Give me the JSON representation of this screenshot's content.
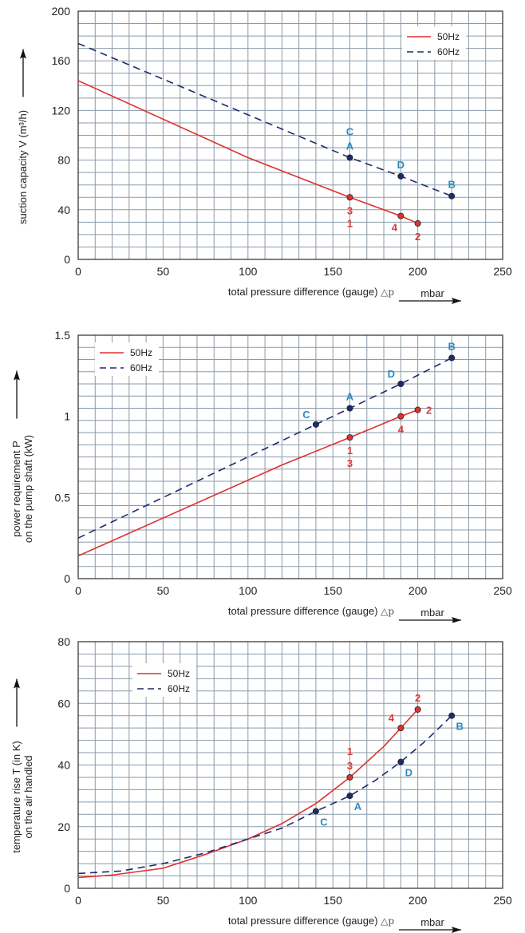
{
  "colors": {
    "series_50": "#e03030",
    "series_60": "#1e2a6e",
    "label_50": "#d83a3a",
    "label_60": "#2a8bc4",
    "grid": "#8a9aa8",
    "background": "#ffffff"
  },
  "unit_label": "mbar",
  "chart_data": [
    {
      "type": "line",
      "xlabel": "total pressure difference (gauge)",
      "xlabel_symbol": "△p",
      "ylabel": "suction capacity V (m³/h)",
      "ylabel_2": "",
      "xlim": [
        0,
        250
      ],
      "ylim": [
        0,
        200
      ],
      "x_ticks": [
        "0",
        "50",
        "100",
        "150",
        "200",
        "250"
      ],
      "y_ticks": [
        "0",
        "40",
        "80",
        "120",
        "160",
        "200"
      ],
      "grid": true,
      "legend_position": "top-right",
      "series": [
        {
          "name": "50Hz",
          "style": "solid",
          "points": [
            [
              0,
              144
            ],
            [
              100,
              82
            ],
            [
              160,
              50
            ],
            [
              190,
              35
            ],
            [
              200,
              29
            ]
          ],
          "markers": [
            [
              160,
              50
            ],
            [
              190,
              35
            ],
            [
              200,
              29
            ]
          ]
        },
        {
          "name": "60Hz",
          "style": "dashed",
          "points": [
            [
              0,
              174
            ],
            [
              160,
              82
            ],
            [
              190,
              67
            ],
            [
              220,
              51
            ]
          ],
          "markers": [
            [
              160,
              82
            ],
            [
              190,
              67
            ],
            [
              220,
              51
            ]
          ]
        }
      ],
      "annotations": [
        {
          "text": "C",
          "x": 160,
          "y": 82,
          "series": "60Hz",
          "pos": "above-far"
        },
        {
          "text": "A",
          "x": 160,
          "y": 82,
          "series": "60Hz",
          "pos": "above"
        },
        {
          "text": "D",
          "x": 190,
          "y": 67,
          "series": "60Hz",
          "pos": "above"
        },
        {
          "text": "B",
          "x": 220,
          "y": 51,
          "series": "60Hz",
          "pos": "above"
        },
        {
          "text": "3",
          "x": 160,
          "y": 50,
          "series": "50Hz",
          "pos": "below"
        },
        {
          "text": "1",
          "x": 160,
          "y": 50,
          "series": "50Hz",
          "pos": "below-far"
        },
        {
          "text": "4",
          "x": 190,
          "y": 35,
          "series": "50Hz",
          "pos": "below-left"
        },
        {
          "text": "2",
          "x": 200,
          "y": 29,
          "series": "50Hz",
          "pos": "below"
        }
      ]
    },
    {
      "type": "line",
      "xlabel": "total pressure difference (gauge)",
      "xlabel_symbol": "△p",
      "ylabel": "power requirement P",
      "ylabel_2": "on the pump shaft (kW)",
      "xlim": [
        0,
        250
      ],
      "ylim": [
        0,
        1.5
      ],
      "x_ticks": [
        "0",
        "50",
        "100",
        "150",
        "200",
        "250"
      ],
      "y_ticks": [
        "0",
        "0.5",
        "1",
        "1.5"
      ],
      "grid": true,
      "legend_position": "top-left",
      "series": [
        {
          "name": "50Hz",
          "style": "solid",
          "points": [
            [
              0,
              0.14
            ],
            [
              120,
              0.7
            ],
            [
              160,
              0.87
            ],
            [
              190,
              1.0
            ],
            [
              200,
              1.04
            ]
          ],
          "markers": [
            [
              160,
              0.87
            ],
            [
              190,
              1.0
            ],
            [
              200,
              1.04
            ]
          ]
        },
        {
          "name": "60Hz",
          "style": "dashed",
          "points": [
            [
              0,
              0.25
            ],
            [
              140,
              0.95
            ],
            [
              160,
              1.05
            ],
            [
              190,
              1.2
            ],
            [
              220,
              1.36
            ]
          ],
          "markers": [
            [
              140,
              0.95
            ],
            [
              160,
              1.05
            ],
            [
              190,
              1.2
            ],
            [
              220,
              1.36
            ]
          ]
        }
      ],
      "annotations": [
        {
          "text": "C",
          "x": 140,
          "y": 0.95,
          "series": "60Hz",
          "pos": "above-left"
        },
        {
          "text": "A",
          "x": 160,
          "y": 1.05,
          "series": "60Hz",
          "pos": "above"
        },
        {
          "text": "D",
          "x": 190,
          "y": 1.2,
          "series": "60Hz",
          "pos": "above-left"
        },
        {
          "text": "B",
          "x": 220,
          "y": 1.36,
          "series": "60Hz",
          "pos": "above"
        },
        {
          "text": "1",
          "x": 160,
          "y": 0.87,
          "series": "50Hz",
          "pos": "below"
        },
        {
          "text": "3",
          "x": 160,
          "y": 0.87,
          "series": "50Hz",
          "pos": "below-far"
        },
        {
          "text": "4",
          "x": 190,
          "y": 1.0,
          "series": "50Hz",
          "pos": "below"
        },
        {
          "text": "2",
          "x": 200,
          "y": 1.04,
          "series": "50Hz",
          "pos": "right"
        }
      ]
    },
    {
      "type": "line",
      "xlabel": "total pressure difference (gauge)",
      "xlabel_symbol": "△p",
      "ylabel": "temperature rise T (in K)",
      "ylabel_2": "on the air handled",
      "xlim": [
        0,
        250
      ],
      "ylim": [
        0,
        80
      ],
      "x_ticks": [
        "0",
        "50",
        "100",
        "150",
        "200",
        "250"
      ],
      "y_ticks": [
        "0",
        "20",
        "40",
        "60",
        "80"
      ],
      "grid": true,
      "legend_position": "top-left",
      "series": [
        {
          "name": "50Hz",
          "style": "solid",
          "points": [
            [
              0,
              3.5
            ],
            [
              20,
              4.3
            ],
            [
              50,
              6.5
            ],
            [
              75,
              11
            ],
            [
              100,
              16
            ],
            [
              120,
              21
            ],
            [
              140,
              27.5
            ],
            [
              160,
              36
            ],
            [
              180,
              46
            ],
            [
              190,
              52
            ],
            [
              200,
              58
            ]
          ],
          "markers": [
            [
              160,
              36
            ],
            [
              190,
              52
            ],
            [
              200,
              58
            ]
          ]
        },
        {
          "name": "60Hz",
          "style": "dashed",
          "points": [
            [
              0,
              4.8
            ],
            [
              25,
              5.6
            ],
            [
              50,
              8
            ],
            [
              75,
              11.5
            ],
            [
              100,
              16
            ],
            [
              120,
              19.5
            ],
            [
              140,
              25
            ],
            [
              160,
              30
            ],
            [
              175,
              35
            ],
            [
              190,
              41
            ],
            [
              205,
              48
            ],
            [
              220,
              56
            ]
          ],
          "markers": [
            [
              140,
              25
            ],
            [
              160,
              30
            ],
            [
              190,
              41
            ],
            [
              220,
              56
            ]
          ]
        }
      ],
      "annotations": [
        {
          "text": "C",
          "x": 140,
          "y": 25,
          "series": "60Hz",
          "pos": "below-right"
        },
        {
          "text": "A",
          "x": 160,
          "y": 30,
          "series": "60Hz",
          "pos": "below-right"
        },
        {
          "text": "D",
          "x": 190,
          "y": 41,
          "series": "60Hz",
          "pos": "below-right"
        },
        {
          "text": "B",
          "x": 220,
          "y": 56,
          "series": "60Hz",
          "pos": "below-right"
        },
        {
          "text": "1",
          "x": 160,
          "y": 36,
          "series": "50Hz",
          "pos": "above-far"
        },
        {
          "text": "3",
          "x": 160,
          "y": 36,
          "series": "50Hz",
          "pos": "above"
        },
        {
          "text": "4",
          "x": 190,
          "y": 52,
          "series": "50Hz",
          "pos": "above-left"
        },
        {
          "text": "2",
          "x": 200,
          "y": 58,
          "series": "50Hz",
          "pos": "above"
        }
      ]
    }
  ]
}
